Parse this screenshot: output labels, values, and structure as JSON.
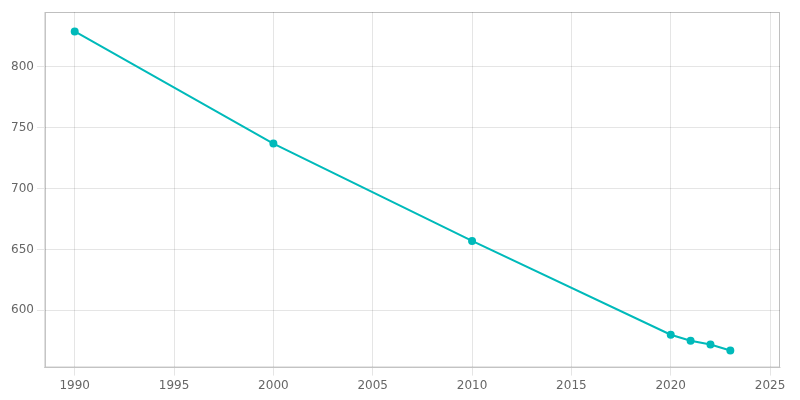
{
  "chart_data": {
    "type": "line",
    "x": [
      1990,
      2000,
      2010,
      2020,
      2021,
      2022,
      2023
    ],
    "values": [
      829,
      737,
      657,
      580,
      575,
      572,
      567
    ],
    "color": "#00BABA",
    "marker": "circle",
    "xlim": [
      1988.5,
      2025.5
    ],
    "ylim": [
      553,
      845
    ],
    "xticks": [
      1990,
      1995,
      2000,
      2005,
      2010,
      2015,
      2020,
      2025
    ],
    "yticks": [
      600,
      650,
      700,
      750,
      800
    ],
    "grid": true
  }
}
